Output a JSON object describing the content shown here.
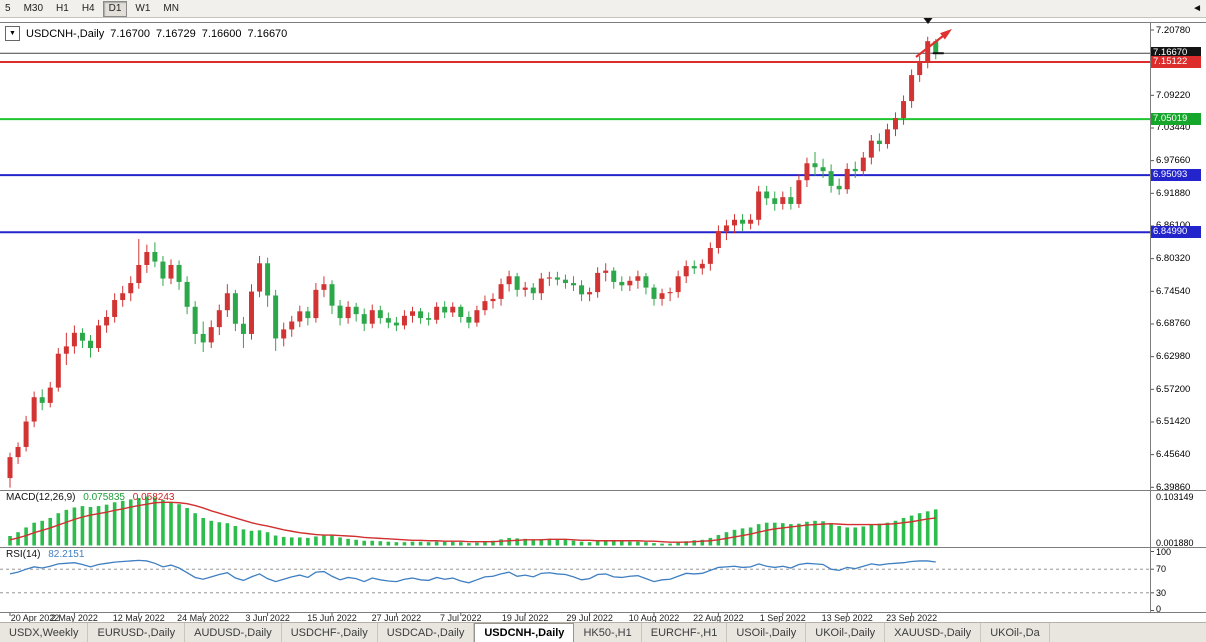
{
  "toolbar": {
    "timeframes": [
      "5",
      "M30",
      "H1",
      "H4",
      "D1",
      "W1",
      "MN"
    ],
    "active": "D1"
  },
  "title": {
    "dropdown_icon": "▼",
    "symbol": "USDCNH-,Daily",
    "open": "7.16700",
    "high": "7.16729",
    "low": "7.16600",
    "close": "7.16670"
  },
  "price_axis": {
    "ticks": [
      "7.20780",
      "7.09220",
      "7.03440",
      "6.97660",
      "6.91880",
      "6.86100",
      "6.80320",
      "6.74540",
      "6.68760",
      "6.62980",
      "6.57200",
      "6.51420",
      "6.45640",
      "6.39860"
    ],
    "tags": [
      {
        "label": "7.16670",
        "bg": "#141414"
      },
      {
        "label": "7.15122",
        "bg": "#dd2c2c"
      },
      {
        "label": "7.05019",
        "bg": "#16a62c"
      },
      {
        "label": "6.95093",
        "bg": "#2424cc"
      },
      {
        "label": "6.84990",
        "bg": "#2424cc"
      }
    ]
  },
  "indicators": {
    "macd": {
      "name": "MACD(12,26,9)",
      "main_value": "0.075835",
      "signal_value": "0.058243",
      "axis_max": "0.103149",
      "axis_min": "0.001880",
      "hist_color": "#2dbd4d",
      "signal_color": "#d03030"
    },
    "rsi": {
      "name": "RSI(14)",
      "value": "82.2151",
      "axis_labels": [
        "100",
        "70",
        "30",
        "0"
      ],
      "line_color": "#3f7fc1"
    }
  },
  "time_axis": [
    {
      "label": "20 Apr 2022",
      "bar": 0
    },
    {
      "label": "2 May 2022",
      "bar": 8
    },
    {
      "label": "12 May 2022",
      "bar": 16
    },
    {
      "label": "24 May 2022",
      "bar": 24
    },
    {
      "label": "3 Jun 2022",
      "bar": 32
    },
    {
      "label": "15 Jun 2022",
      "bar": 40
    },
    {
      "label": "27 Jun 2022",
      "bar": 48
    },
    {
      "label": "7 Jul 2022",
      "bar": 56
    },
    {
      "label": "19 Jul 2022",
      "bar": 64
    },
    {
      "label": "29 Jul 2022",
      "bar": 72
    },
    {
      "label": "10 Aug 2022",
      "bar": 80
    },
    {
      "label": "22 Aug 2022",
      "bar": 88
    },
    {
      "label": "1 Sep 2022",
      "bar": 96
    },
    {
      "label": "13 Sep 2022",
      "bar": 104
    },
    {
      "label": "23 Sep 2022",
      "bar": 112
    }
  ],
  "tabs": {
    "scroll_left_icon": "◄",
    "items": [
      {
        "label": "USDX,Weekly",
        "active": false
      },
      {
        "label": "EURUSD-,Daily",
        "active": false
      },
      {
        "label": "AUDUSD-,Daily",
        "active": false
      },
      {
        "label": "USDCHF-,Daily",
        "active": false
      },
      {
        "label": "USDCAD-,Daily",
        "active": false
      },
      {
        "label": "USDCNH-,Daily",
        "active": true
      },
      {
        "label": "HK50-,H1",
        "active": false
      },
      {
        "label": "EURCHF-,H1",
        "active": false
      },
      {
        "label": "USOil-,Daily",
        "active": false
      },
      {
        "label": "UKOil-,Daily",
        "active": false
      },
      {
        "label": "XAUUSD-,Daily",
        "active": false
      },
      {
        "label": "UKOil-,Da",
        "active": false
      }
    ]
  },
  "chart_data": {
    "type": "candlestick",
    "symbol": "USDCNH",
    "timeframe": "Daily",
    "price_min": 6.3986,
    "price_max": 7.2078,
    "tick_step": 0.0578,
    "current_price": 7.1667,
    "up_color": "#d23434",
    "down_color": "#2ca84a",
    "hlines": [
      {
        "price": 7.15122,
        "color": "#dd2c2c"
      },
      {
        "price": 7.05019,
        "color": "#1fc433"
      },
      {
        "price": 6.95093,
        "color": "#2424cc"
      },
      {
        "price": 6.8499,
        "color": "#2424cc"
      }
    ],
    "candles": [
      [
        6.415,
        6.46,
        6.398,
        6.452
      ],
      [
        6.452,
        6.478,
        6.44,
        6.47
      ],
      [
        6.47,
        6.525,
        6.462,
        6.515
      ],
      [
        6.515,
        6.568,
        6.505,
        6.558
      ],
      [
        6.558,
        6.572,
        6.535,
        6.548
      ],
      [
        6.548,
        6.585,
        6.54,
        6.575
      ],
      [
        6.575,
        6.645,
        6.568,
        6.635
      ],
      [
        6.635,
        6.672,
        6.615,
        6.648
      ],
      [
        6.648,
        6.685,
        6.635,
        6.672
      ],
      [
        6.672,
        6.68,
        6.645,
        6.658
      ],
      [
        6.658,
        6.668,
        6.628,
        6.645
      ],
      [
        6.645,
        6.695,
        6.638,
        6.685
      ],
      [
        6.685,
        6.712,
        6.672,
        6.7
      ],
      [
        6.7,
        6.742,
        6.69,
        6.73
      ],
      [
        6.73,
        6.755,
        6.718,
        6.742
      ],
      [
        6.742,
        6.772,
        6.728,
        6.76
      ],
      [
        6.76,
        6.838,
        6.75,
        6.792
      ],
      [
        6.792,
        6.828,
        6.778,
        6.815
      ],
      [
        6.815,
        6.832,
        6.788,
        6.798
      ],
      [
        6.798,
        6.808,
        6.755,
        6.768
      ],
      [
        6.768,
        6.802,
        6.758,
        6.792
      ],
      [
        6.792,
        6.8,
        6.748,
        6.762
      ],
      [
        6.762,
        6.772,
        6.705,
        6.718
      ],
      [
        6.718,
        6.728,
        6.652,
        6.67
      ],
      [
        6.67,
        6.692,
        6.638,
        6.655
      ],
      [
        6.655,
        6.694,
        6.645,
        6.682
      ],
      [
        6.682,
        6.722,
        6.668,
        6.712
      ],
      [
        6.712,
        6.758,
        6.7,
        6.742
      ],
      [
        6.742,
        6.748,
        6.675,
        6.688
      ],
      [
        6.688,
        6.7,
        6.645,
        6.67
      ],
      [
        6.67,
        6.758,
        6.66,
        6.745
      ],
      [
        6.745,
        6.808,
        6.735,
        6.795
      ],
      [
        6.795,
        6.805,
        6.718,
        6.738
      ],
      [
        6.738,
        6.748,
        6.64,
        6.662
      ],
      [
        6.662,
        6.69,
        6.648,
        6.678
      ],
      [
        6.678,
        6.702,
        6.665,
        6.692
      ],
      [
        6.692,
        6.72,
        6.682,
        6.71
      ],
      [
        6.71,
        6.718,
        6.685,
        6.698
      ],
      [
        6.698,
        6.76,
        6.69,
        6.748
      ],
      [
        6.748,
        6.772,
        6.735,
        6.758
      ],
      [
        6.758,
        6.765,
        6.705,
        6.72
      ],
      [
        6.72,
        6.73,
        6.685,
        6.698
      ],
      [
        6.698,
        6.728,
        6.688,
        6.718
      ],
      [
        6.718,
        6.725,
        6.692,
        6.705
      ],
      [
        6.705,
        6.715,
        6.675,
        6.688
      ],
      [
        6.688,
        6.722,
        6.68,
        6.712
      ],
      [
        6.712,
        6.72,
        6.688,
        6.698
      ],
      [
        6.698,
        6.708,
        6.68,
        6.69
      ],
      [
        6.69,
        6.7,
        6.675,
        6.685
      ],
      [
        6.685,
        6.712,
        6.678,
        6.702
      ],
      [
        6.702,
        6.718,
        6.69,
        6.71
      ],
      [
        6.71,
        6.716,
        6.688,
        6.698
      ],
      [
        6.698,
        6.708,
        6.685,
        6.695
      ],
      [
        6.695,
        6.726,
        6.688,
        6.718
      ],
      [
        6.718,
        6.728,
        6.698,
        6.708
      ],
      [
        6.708,
        6.726,
        6.7,
        6.718
      ],
      [
        6.718,
        6.722,
        6.69,
        6.7
      ],
      [
        6.7,
        6.71,
        6.68,
        6.69
      ],
      [
        6.69,
        6.72,
        6.683,
        6.712
      ],
      [
        6.712,
        6.738,
        6.703,
        6.728
      ],
      [
        6.728,
        6.742,
        6.715,
        6.732
      ],
      [
        6.732,
        6.768,
        6.72,
        6.758
      ],
      [
        6.758,
        6.782,
        6.745,
        6.772
      ],
      [
        6.772,
        6.778,
        6.736,
        6.748
      ],
      [
        6.748,
        6.762,
        6.736,
        6.752
      ],
      [
        6.752,
        6.76,
        6.73,
        6.742
      ],
      [
        6.742,
        6.778,
        6.73,
        6.768
      ],
      [
        6.768,
        6.78,
        6.755,
        6.77
      ],
      [
        6.77,
        6.78,
        6.756,
        6.766
      ],
      [
        6.766,
        6.775,
        6.75,
        6.76
      ],
      [
        6.76,
        6.772,
        6.746,
        6.756
      ],
      [
        6.756,
        6.765,
        6.728,
        6.74
      ],
      [
        6.74,
        6.752,
        6.728,
        6.744
      ],
      [
        6.744,
        6.788,
        6.734,
        6.778
      ],
      [
        6.778,
        6.795,
        6.763,
        6.782
      ],
      [
        6.782,
        6.788,
        6.75,
        6.762
      ],
      [
        6.762,
        6.772,
        6.746,
        6.756
      ],
      [
        6.756,
        6.772,
        6.746,
        6.764
      ],
      [
        6.764,
        6.782,
        6.75,
        6.772
      ],
      [
        6.772,
        6.778,
        6.74,
        6.752
      ],
      [
        6.752,
        6.758,
        6.72,
        6.732
      ],
      [
        6.732,
        6.75,
        6.72,
        6.742
      ],
      [
        6.742,
        6.752,
        6.728,
        6.744
      ],
      [
        6.744,
        6.782,
        6.734,
        6.772
      ],
      [
        6.772,
        6.8,
        6.76,
        6.79
      ],
      [
        6.79,
        6.8,
        6.776,
        6.786
      ],
      [
        6.786,
        6.802,
        6.775,
        6.794
      ],
      [
        6.794,
        6.832,
        6.782,
        6.822
      ],
      [
        6.822,
        6.862,
        6.812,
        6.852
      ],
      [
        6.852,
        6.872,
        6.836,
        6.862
      ],
      [
        6.862,
        6.882,
        6.848,
        6.872
      ],
      [
        6.872,
        6.882,
        6.852,
        6.865
      ],
      [
        6.865,
        6.882,
        6.855,
        6.872
      ],
      [
        6.872,
        6.932,
        6.862,
        6.922
      ],
      [
        6.922,
        6.932,
        6.898,
        6.91
      ],
      [
        6.91,
        6.922,
        6.888,
        6.9
      ],
      [
        6.9,
        6.922,
        6.89,
        6.912
      ],
      [
        6.912,
        6.93,
        6.89,
        6.9
      ],
      [
        6.9,
        6.952,
        6.893,
        6.942
      ],
      [
        6.942,
        6.982,
        6.93,
        6.972
      ],
      [
        6.972,
        6.992,
        6.95,
        6.965
      ],
      [
        6.965,
        6.98,
        6.946,
        6.958
      ],
      [
        6.958,
        6.97,
        6.92,
        6.932
      ],
      [
        6.932,
        6.945,
        6.916,
        6.926
      ],
      [
        6.926,
        6.972,
        6.918,
        6.962
      ],
      [
        6.962,
        6.975,
        6.946,
        6.958
      ],
      [
        6.958,
        6.992,
        6.95,
        6.982
      ],
      [
        6.982,
        7.022,
        6.97,
        7.012
      ],
      [
        7.012,
        7.025,
        6.993,
        7.006
      ],
      [
        7.006,
        7.042,
        6.998,
        7.032
      ],
      [
        7.032,
        7.062,
        7.02,
        7.052
      ],
      [
        7.052,
        7.092,
        7.04,
        7.082
      ],
      [
        7.082,
        7.138,
        7.07,
        7.128
      ],
      [
        7.128,
        7.162,
        7.116,
        7.152
      ],
      [
        7.152,
        7.196,
        7.14,
        7.188
      ],
      [
        7.188,
        7.192,
        7.156,
        7.167
      ]
    ],
    "macd": {
      "max": 0.103149,
      "hist": [
        0.02,
        0.028,
        0.038,
        0.048,
        0.052,
        0.058,
        0.068,
        0.075,
        0.08,
        0.083,
        0.081,
        0.083,
        0.086,
        0.091,
        0.094,
        0.097,
        0.1,
        0.103,
        0.101,
        0.096,
        0.092,
        0.087,
        0.079,
        0.068,
        0.058,
        0.052,
        0.049,
        0.047,
        0.041,
        0.034,
        0.031,
        0.032,
        0.028,
        0.021,
        0.018,
        0.017,
        0.017,
        0.016,
        0.019,
        0.021,
        0.021,
        0.017,
        0.014,
        0.012,
        0.01,
        0.01,
        0.009,
        0.008,
        0.007,
        0.007,
        0.008,
        0.008,
        0.007,
        0.008,
        0.008,
        0.008,
        0.007,
        0.005,
        0.006,
        0.008,
        0.01,
        0.013,
        0.016,
        0.015,
        0.014,
        0.012,
        0.013,
        0.014,
        0.013,
        0.012,
        0.01,
        0.008,
        0.007,
        0.009,
        0.011,
        0.01,
        0.009,
        0.008,
        0.008,
        0.007,
        0.005,
        0.004,
        0.004,
        0.006,
        0.009,
        0.011,
        0.012,
        0.016,
        0.022,
        0.028,
        0.033,
        0.036,
        0.038,
        0.045,
        0.048,
        0.048,
        0.047,
        0.045,
        0.046,
        0.05,
        0.052,
        0.051,
        0.046,
        0.041,
        0.038,
        0.038,
        0.04,
        0.045,
        0.046,
        0.048,
        0.052,
        0.058,
        0.063,
        0.068,
        0.072,
        0.076
      ],
      "signal": [
        0.012,
        0.016,
        0.021,
        0.027,
        0.032,
        0.037,
        0.043,
        0.049,
        0.055,
        0.06,
        0.064,
        0.067,
        0.07,
        0.074,
        0.077,
        0.081,
        0.084,
        0.087,
        0.09,
        0.091,
        0.091,
        0.09,
        0.088,
        0.084,
        0.079,
        0.073,
        0.068,
        0.063,
        0.058,
        0.053,
        0.048,
        0.044,
        0.041,
        0.037,
        0.033,
        0.03,
        0.027,
        0.025,
        0.023,
        0.022,
        0.022,
        0.021,
        0.02,
        0.019,
        0.017,
        0.016,
        0.015,
        0.014,
        0.013,
        0.012,
        0.011,
        0.011,
        0.01,
        0.01,
        0.009,
        0.009,
        0.009,
        0.008,
        0.008,
        0.008,
        0.008,
        0.009,
        0.01,
        0.011,
        0.012,
        0.012,
        0.012,
        0.013,
        0.013,
        0.013,
        0.012,
        0.011,
        0.011,
        0.01,
        0.01,
        0.01,
        0.01,
        0.01,
        0.01,
        0.009,
        0.009,
        0.008,
        0.007,
        0.007,
        0.007,
        0.008,
        0.009,
        0.01,
        0.012,
        0.015,
        0.018,
        0.021,
        0.024,
        0.028,
        0.032,
        0.035,
        0.037,
        0.039,
        0.041,
        0.043,
        0.044,
        0.045,
        0.046,
        0.045,
        0.044,
        0.044,
        0.044,
        0.044,
        0.044,
        0.045,
        0.046,
        0.048,
        0.05,
        0.053,
        0.056,
        0.058
      ]
    },
    "rsi": {
      "range": [
        0,
        100
      ],
      "levels": [
        70,
        30
      ],
      "values": [
        62,
        65,
        70,
        74,
        72,
        75,
        79,
        80,
        81,
        78,
        74,
        78,
        80,
        82,
        83,
        84,
        85,
        84,
        80,
        74,
        77,
        72,
        64,
        56,
        53,
        57,
        61,
        64,
        55,
        51,
        57,
        62,
        54,
        49,
        53,
        57,
        60,
        56,
        65,
        66,
        58,
        52,
        56,
        54,
        49,
        55,
        52,
        50,
        49,
        53,
        55,
        52,
        51,
        56,
        53,
        55,
        50,
        47,
        52,
        57,
        58,
        62,
        65,
        58,
        60,
        57,
        63,
        64,
        62,
        61,
        57,
        52,
        54,
        61,
        62,
        57,
        56,
        58,
        59,
        54,
        49,
        52,
        53,
        58,
        63,
        62,
        63,
        68,
        73,
        74,
        75,
        73,
        74,
        79,
        75,
        73,
        75,
        72,
        78,
        80,
        79,
        78,
        70,
        68,
        73,
        71,
        75,
        79,
        77,
        79,
        80,
        81,
        83,
        84,
        84,
        82.2
      ]
    }
  }
}
